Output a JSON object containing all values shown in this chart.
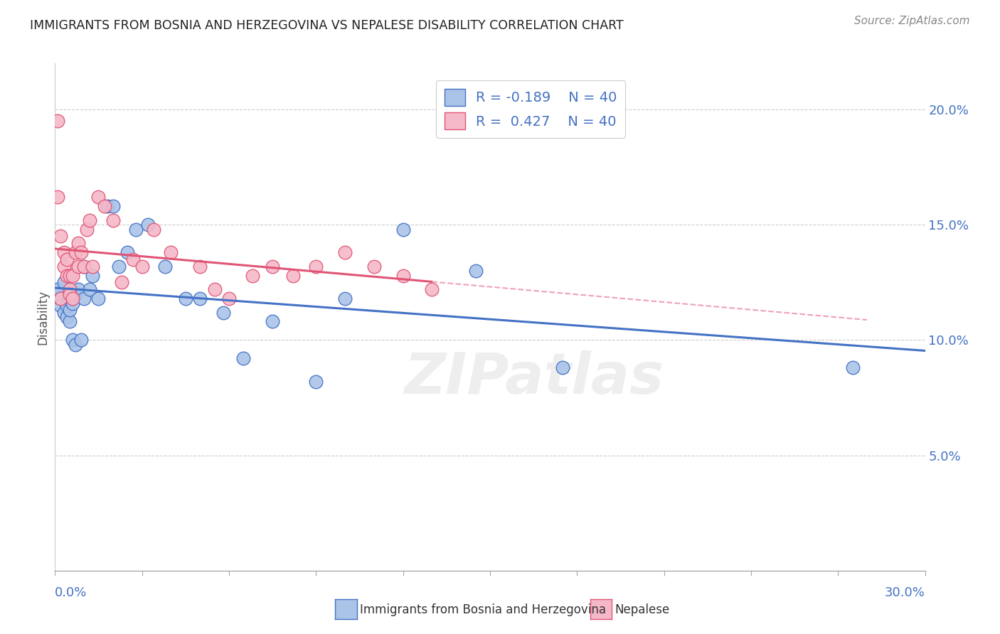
{
  "title": "IMMIGRANTS FROM BOSNIA AND HERZEGOVINA VS NEPALESE DISABILITY CORRELATION CHART",
  "source": "Source: ZipAtlas.com",
  "ylabel": "Disability",
  "xlim": [
    0.0,
    0.3
  ],
  "ylim": [
    0.0,
    0.22
  ],
  "yticks": [
    0.05,
    0.1,
    0.15,
    0.2
  ],
  "ytick_labels": [
    "5.0%",
    "10.0%",
    "15.0%",
    "20.0%"
  ],
  "legend_r_bosnia": "-0.189",
  "legend_n_bosnia": "40",
  "legend_r_nepalese": "0.427",
  "legend_n_nepalese": "40",
  "bosnia_color": "#aac4e8",
  "nepalese_color": "#f5b8c8",
  "bosnia_line_color": "#4472c4",
  "nepalese_line_color": "#e05575",
  "nepalese_dashed_color": "#f0a0b8",
  "watermark": "ZIPatlas",
  "bosnia_x": [
    0.001,
    0.001,
    0.002,
    0.002,
    0.003,
    0.003,
    0.004,
    0.004,
    0.005,
    0.005,
    0.005,
    0.006,
    0.006,
    0.007,
    0.007,
    0.008,
    0.009,
    0.01,
    0.01,
    0.012,
    0.013,
    0.015,
    0.018,
    0.02,
    0.022,
    0.025,
    0.028,
    0.032,
    0.038,
    0.045,
    0.05,
    0.058,
    0.065,
    0.075,
    0.09,
    0.1,
    0.12,
    0.145,
    0.175,
    0.275
  ],
  "bosnia_y": [
    0.12,
    0.122,
    0.118,
    0.115,
    0.112,
    0.125,
    0.11,
    0.115,
    0.108,
    0.113,
    0.118,
    0.1,
    0.116,
    0.098,
    0.12,
    0.122,
    0.1,
    0.132,
    0.118,
    0.122,
    0.128,
    0.118,
    0.158,
    0.158,
    0.132,
    0.138,
    0.148,
    0.15,
    0.132,
    0.118,
    0.118,
    0.112,
    0.092,
    0.108,
    0.082,
    0.118,
    0.148,
    0.13,
    0.088,
    0.088
  ],
  "nepalese_x": [
    0.001,
    0.001,
    0.002,
    0.002,
    0.003,
    0.003,
    0.004,
    0.004,
    0.005,
    0.005,
    0.005,
    0.006,
    0.006,
    0.007,
    0.008,
    0.008,
    0.009,
    0.01,
    0.011,
    0.012,
    0.013,
    0.015,
    0.017,
    0.02,
    0.023,
    0.027,
    0.03,
    0.034,
    0.04,
    0.05,
    0.055,
    0.06,
    0.068,
    0.075,
    0.082,
    0.09,
    0.1,
    0.11,
    0.12,
    0.13
  ],
  "nepalese_y": [
    0.195,
    0.162,
    0.145,
    0.118,
    0.132,
    0.138,
    0.128,
    0.135,
    0.122,
    0.128,
    0.12,
    0.118,
    0.128,
    0.138,
    0.132,
    0.142,
    0.138,
    0.132,
    0.148,
    0.152,
    0.132,
    0.162,
    0.158,
    0.152,
    0.125,
    0.135,
    0.132,
    0.148,
    0.138,
    0.132,
    0.122,
    0.118,
    0.128,
    0.132,
    0.128,
    0.132,
    0.138,
    0.132,
    0.128,
    0.122
  ]
}
